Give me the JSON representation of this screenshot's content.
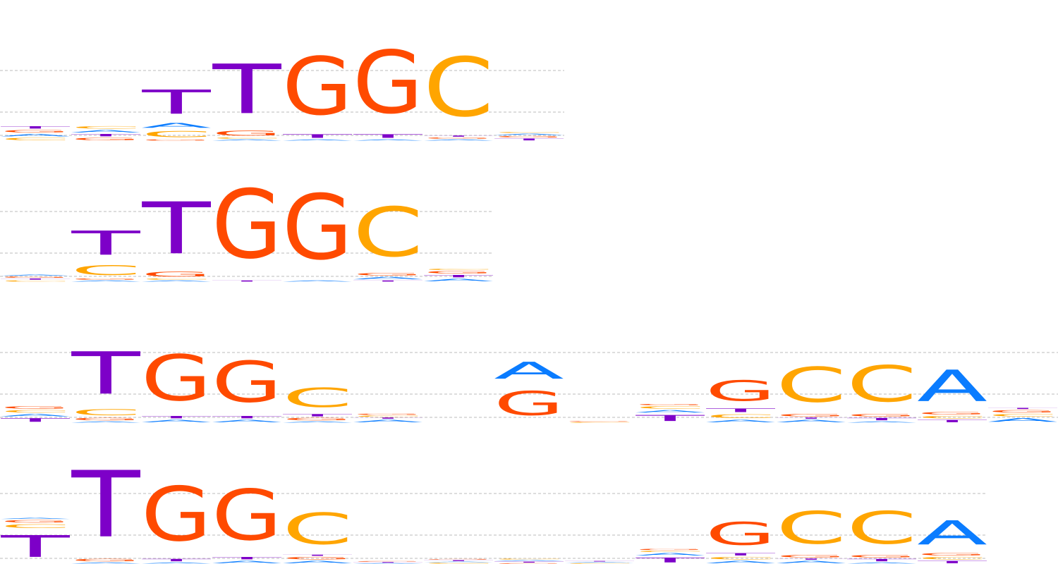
{
  "colors": {
    "A": "#0a7cff",
    "C": "#ffa500",
    "G": "#ff4a00",
    "T": "#7d00c8",
    "gridline": "#bbbbbb"
  },
  "logos": [
    {
      "positions": [
        [
          [
            "C",
            0.1
          ],
          [
            "A",
            0.1
          ],
          [
            "G",
            0.1
          ],
          [
            "T",
            0.1
          ]
        ],
        [
          [
            "G",
            0.1
          ],
          [
            "T",
            0.1
          ],
          [
            "A",
            0.1
          ],
          [
            "C",
            0.1
          ]
        ],
        [
          [
            "G",
            0.05
          ],
          [
            "C",
            0.25
          ],
          [
            "A",
            0.2
          ],
          [
            "T",
            1.0
          ]
        ],
        [
          [
            "A",
            0.05
          ],
          [
            "C",
            0.05
          ],
          [
            "G",
            0.2
          ],
          [
            "T",
            2.05
          ]
        ],
        [
          [
            "A",
            0.05
          ],
          [
            "T",
            0.15
          ],
          [
            "G",
            2.4
          ]
        ],
        [
          [
            "A",
            0.05
          ],
          [
            "T",
            0.15
          ],
          [
            "G",
            2.6
          ]
        ],
        [
          [
            "A",
            0.05
          ],
          [
            "G",
            0.05
          ],
          [
            "T",
            0.05
          ],
          [
            "C",
            2.45
          ]
        ],
        [
          [
            "T",
            0.08
          ],
          [
            "G",
            0.06
          ],
          [
            "A",
            0.06
          ],
          [
            "C",
            0.04
          ]
        ]
      ]
    },
    {
      "positions": [
        [
          [
            "C",
            0.05
          ],
          [
            "T",
            0.05
          ],
          [
            "G",
            0.05
          ],
          [
            "A",
            0.05
          ]
        ],
        [
          [
            "A",
            0.05
          ],
          [
            "G",
            0.05
          ],
          [
            "C",
            0.4
          ],
          [
            "T",
            1.0
          ]
        ],
        [
          [
            "A",
            0.05
          ],
          [
            "C",
            0.05
          ],
          [
            "G",
            0.2
          ],
          [
            "T",
            2.15
          ]
        ],
        [
          [
            "T",
            0.05
          ],
          [
            "G",
            2.85
          ]
        ],
        [
          [
            "A",
            0.05
          ],
          [
            "G",
            2.7
          ]
        ],
        [
          [
            "T",
            0.05
          ],
          [
            "A",
            0.1
          ],
          [
            "G",
            0.1
          ],
          [
            "C",
            2.05
          ]
        ],
        [
          [
            "A",
            0.1
          ],
          [
            "T",
            0.1
          ],
          [
            "G",
            0.1
          ],
          [
            "C",
            0.05
          ]
        ]
      ]
    },
    {
      "positions": [
        [
          [
            "T",
            0.15
          ],
          [
            "A",
            0.1
          ],
          [
            "C",
            0.1
          ],
          [
            "G",
            0.1
          ]
        ],
        [
          [
            "A",
            0.05
          ],
          [
            "G",
            0.1
          ],
          [
            "C",
            0.25
          ],
          [
            "T",
            1.75
          ]
        ],
        [
          [
            "A",
            0.1
          ],
          [
            "T",
            0.1
          ],
          [
            "G",
            1.9
          ]
        ],
        [
          [
            "A",
            0.1
          ],
          [
            "T",
            0.1
          ],
          [
            "G",
            1.7
          ]
        ],
        [
          [
            "A",
            0.05
          ],
          [
            "G",
            0.1
          ],
          [
            "T",
            0.1
          ],
          [
            "C",
            0.8
          ]
        ],
        [
          [
            "A",
            0.1
          ],
          [
            "T",
            0.05
          ],
          [
            "C",
            0.05
          ],
          [
            "G",
            0.05
          ]
        ],
        [],
        [
          [
            "G",
            1.0
          ],
          [
            "A",
            0.7
          ]
        ],
        [
          [
            "C",
            0.02
          ],
          [
            "G",
            0.02
          ]
        ],
        [
          [
            "T",
            0.25
          ],
          [
            "A",
            0.1
          ],
          [
            "C",
            0.1
          ],
          [
            "G",
            0.05
          ]
        ],
        [
          [
            "A",
            0.1
          ],
          [
            "C",
            0.15
          ],
          [
            "T",
            0.15
          ],
          [
            "G",
            0.85
          ]
        ],
        [
          [
            "A",
            0.1
          ],
          [
            "T",
            0.05
          ],
          [
            "G",
            0.1
          ],
          [
            "C",
            1.45
          ]
        ],
        [
          [
            "A",
            0.05
          ],
          [
            "T",
            0.1
          ],
          [
            "G",
            0.1
          ],
          [
            "C",
            1.5
          ]
        ],
        [
          [
            "T",
            0.1
          ],
          [
            "C",
            0.1
          ],
          [
            "G",
            0.1
          ],
          [
            "A",
            1.3
          ]
        ],
        [
          [
            "A",
            0.15
          ],
          [
            "C",
            0.1
          ],
          [
            "G",
            0.1
          ],
          [
            "T",
            0.05
          ]
        ]
      ]
    },
    {
      "positions": [
        [
          [
            "T",
            0.9
          ],
          [
            "C",
            0.15
          ],
          [
            "G",
            0.1
          ],
          [
            "A",
            0.05
          ]
        ],
        [
          [
            "A",
            0.05
          ],
          [
            "G",
            0.1
          ],
          [
            "T",
            2.75
          ]
        ],
        [
          [
            "A",
            0.05
          ],
          [
            "T",
            0.1
          ],
          [
            "G",
            2.25
          ]
        ],
        [
          [
            "A",
            0.1
          ],
          [
            "T",
            0.1
          ],
          [
            "G",
            2.1
          ]
        ],
        [
          [
            "A",
            0.1
          ],
          [
            "G",
            0.1
          ],
          [
            "T",
            0.05
          ],
          [
            "C",
            1.3
          ]
        ],
        [
          [
            "A",
            0.02
          ],
          [
            "T",
            0.02
          ],
          [
            "G",
            0.02
          ]
        ],
        [
          [
            "C",
            0.04
          ],
          [
            "A",
            0.02
          ],
          [
            "T",
            0.04
          ],
          [
            "G",
            0.02
          ]
        ],
        [
          [
            "G",
            0.02
          ],
          [
            "T",
            0.04
          ],
          [
            "A",
            0.04
          ],
          [
            "C",
            0.04
          ]
        ],
        [
          [
            "C",
            0.02
          ],
          [
            "A",
            0.03
          ],
          [
            "T",
            0.02
          ]
        ],
        [
          [
            "T",
            0.2
          ],
          [
            "A",
            0.1
          ],
          [
            "C",
            0.05
          ],
          [
            "G",
            0.05
          ]
        ],
        [
          [
            "A",
            0.1
          ],
          [
            "C",
            0.1
          ],
          [
            "T",
            0.1
          ],
          [
            "G",
            0.95
          ]
        ],
        [
          [
            "A",
            0.1
          ],
          [
            "T",
            0.05
          ],
          [
            "G",
            0.1
          ],
          [
            "C",
            1.35
          ]
        ],
        [
          [
            "A",
            0.05
          ],
          [
            "T",
            0.1
          ],
          [
            "G",
            0.1
          ],
          [
            "C",
            1.35
          ]
        ],
        [
          [
            "T",
            0.1
          ],
          [
            "C",
            0.1
          ],
          [
            "G",
            0.1
          ],
          [
            "A",
            1.0
          ]
        ]
      ]
    }
  ]
}
